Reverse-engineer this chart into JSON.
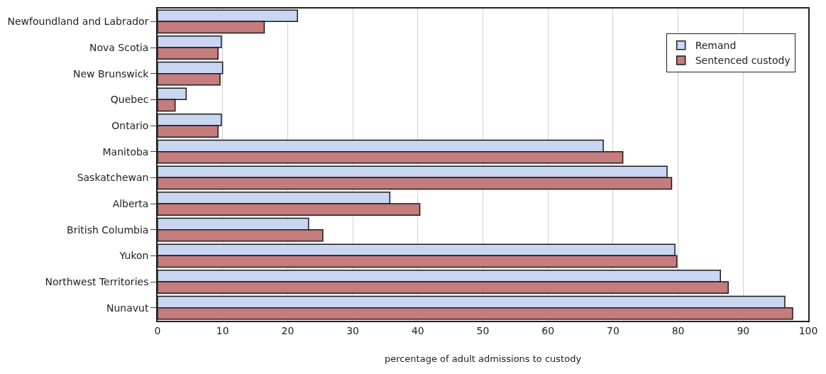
{
  "chart_data": {
    "type": "bar",
    "orientation": "horizontal",
    "xlabel": "percentage of adult admissions to custody",
    "categories": [
      "Newfoundland and Labrador",
      "Nova Scotia",
      "New Brunswick",
      "Quebec",
      "Ontario",
      "Manitoba",
      "Saskatchewan",
      "Alberta",
      "British Columbia",
      "Yukon",
      "Northwest Territories",
      "Nunavut"
    ],
    "series": [
      {
        "name": "Remand",
        "color": "#c8d6f2",
        "values": [
          21.5,
          9.8,
          10.0,
          4.4,
          9.8,
          68.5,
          78.3,
          35.7,
          23.2,
          79.5,
          86.5,
          96.4
        ]
      },
      {
        "name": "Sentenced custody",
        "color": "#c47c7c",
        "values": [
          16.4,
          9.3,
          9.6,
          2.7,
          9.3,
          71.5,
          79.0,
          40.3,
          25.4,
          79.8,
          87.7,
          97.6
        ]
      }
    ],
    "xlim": [
      0,
      100
    ],
    "xticks": [
      0,
      10,
      20,
      30,
      40,
      50,
      60,
      70,
      80,
      90,
      100
    ],
    "grid": "x",
    "legend": "top right"
  }
}
